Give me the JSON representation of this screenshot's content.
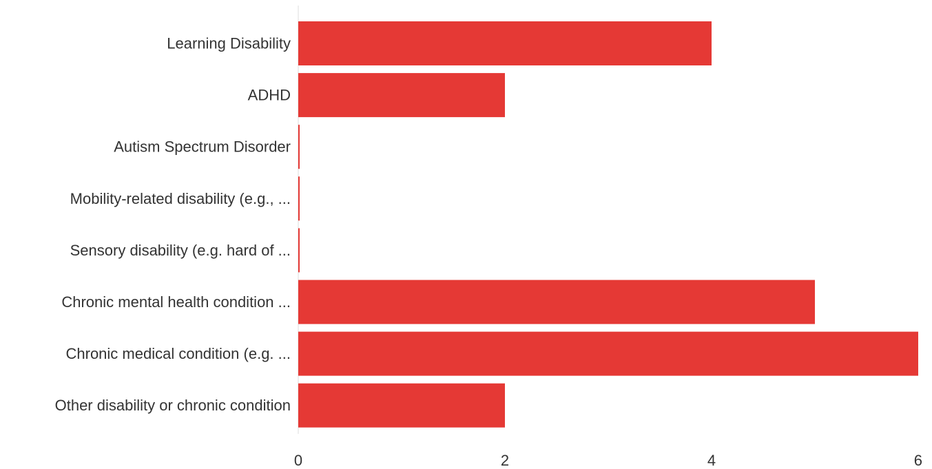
{
  "chart_data": {
    "type": "bar",
    "orientation": "horizontal",
    "title": "",
    "xlabel": "",
    "ylabel": "",
    "categories": [
      "Learning Disability",
      "ADHD",
      "Autism Spectrum Disorder",
      "Mobility-related disability (e.g., ...",
      "Sensory disability (e.g. hard of ...",
      "Chronic mental health condition ...",
      "Chronic medical condition (e.g. ...",
      "Other disability or chronic condition"
    ],
    "values": [
      4,
      2,
      0,
      0,
      0,
      5,
      6,
      2
    ],
    "xlim": [
      0,
      6
    ],
    "xticks": [
      0,
      2,
      4,
      6
    ],
    "grid": false,
    "bar_color": "#e53935",
    "axis_color": "#dddddd",
    "text_color": "#333333"
  }
}
